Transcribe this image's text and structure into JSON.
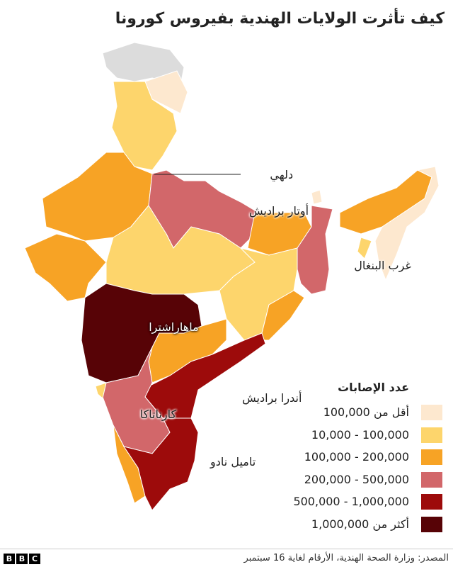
{
  "title": "كيف تأثرت الولايات الهندية بفيروس كورونا",
  "map": {
    "labels": [
      "دلهي",
      "أوتار براديش",
      "غرب البنغال",
      "ماهاراشترا",
      "أندرا براديش",
      "كارناتاكا",
      "تاميل نادو"
    ]
  },
  "legend": {
    "title": "عدد الإصابات",
    "items": [
      {
        "label": "أقل من 100,000",
        "color": "#fde8cf"
      },
      {
        "label": "100,000 - 10,000",
        "color": "#fdd56c"
      },
      {
        "label": "200,000 - 100,000",
        "color": "#f7a325"
      },
      {
        "label": "500,000 - 200,000",
        "color": "#d2676a"
      },
      {
        "label": "1,000,000 - 500,000",
        "color": "#9d0b0b"
      },
      {
        "label": "أكثر من 1,000,000",
        "color": "#570306"
      }
    ]
  },
  "footer": {
    "logo": [
      "B",
      "B",
      "C"
    ],
    "source": "المصدر: وزارة الصحة الهندية، الأرقام لغاية 16 سبتمبر"
  }
}
